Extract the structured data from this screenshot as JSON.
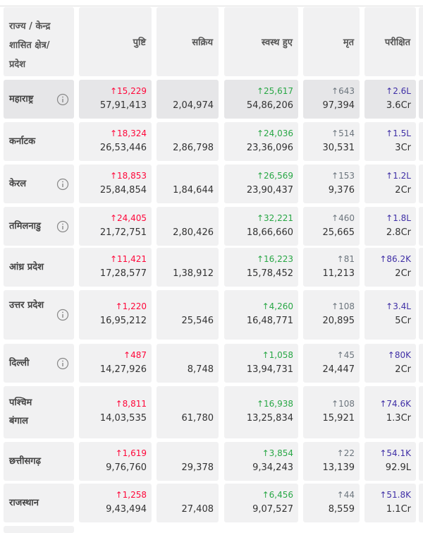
{
  "table": {
    "header": [
      "राज्य / केन्द्र शासित क्षेत्र/ प्रदेश",
      "पुष्टि",
      "सक्रिय",
      "स्वस्थ हुए",
      "मृत",
      "परीक्षित"
    ],
    "rows": [
      {
        "state": "महाराष्ट्र",
        "info": true,
        "confirmed_delta": "↑15,229",
        "confirmed": "57,91,413",
        "active": "2,04,974",
        "recovered_delta": "↑25,617",
        "recovered": "54,86,206",
        "deceased_delta": "↑643",
        "deceased": "97,394",
        "tested_delta": "↑2.6L",
        "tested": "3.6Cr"
      },
      {
        "state": "कर्नाटक",
        "info": false,
        "confirmed_delta": "↑18,324",
        "confirmed": "26,53,446",
        "active": "2,86,798",
        "recovered_delta": "↑24,036",
        "recovered": "23,36,096",
        "deceased_delta": "↑514",
        "deceased": "30,531",
        "tested_delta": "↑1.5L",
        "tested": "3Cr"
      },
      {
        "state": "केरल",
        "info": true,
        "confirmed_delta": "↑18,853",
        "confirmed": "25,84,854",
        "active": "1,84,644",
        "recovered_delta": "↑26,569",
        "recovered": "23,90,437",
        "deceased_delta": "↑153",
        "deceased": "9,376",
        "tested_delta": "↑1.2L",
        "tested": "2Cr"
      },
      {
        "state": "तमिलनाडु",
        "info": true,
        "confirmed_delta": "↑24,405",
        "confirmed": "21,72,751",
        "active": "2,80,426",
        "recovered_delta": "↑32,221",
        "recovered": "18,66,660",
        "deceased_delta": "↑460",
        "deceased": "25,665",
        "tested_delta": "↑1.8L",
        "tested": "2.8Cr"
      },
      {
        "state": "आंध्र प्रदेश",
        "info": false,
        "confirmed_delta": "↑11,421",
        "confirmed": "17,28,577",
        "active": "1,38,912",
        "recovered_delta": "↑16,223",
        "recovered": "15,78,452",
        "deceased_delta": "↑81",
        "deceased": "11,213",
        "tested_delta": "↑86.2K",
        "tested": "2Cr"
      },
      {
        "state": "उत्तर प्रदेश",
        "info": true,
        "confirmed_delta": "↑1,220",
        "confirmed": "16,95,212",
        "active": "25,546",
        "recovered_delta": "↑4,260",
        "recovered": "16,48,771",
        "deceased_delta": "↑108",
        "deceased": "20,895",
        "tested_delta": "↑3.4L",
        "tested": "5Cr"
      },
      {
        "state": "दिल्ली",
        "info": true,
        "confirmed_delta": "↑487",
        "confirmed": "14,27,926",
        "active": "8,748",
        "recovered_delta": "↑1,058",
        "recovered": "13,94,731",
        "deceased_delta": "↑45",
        "deceased": "24,447",
        "tested_delta": "↑80K",
        "tested": "2Cr"
      },
      {
        "state": "पश्चिम बंगाल",
        "info": false,
        "confirmed_delta": "↑8,811",
        "confirmed": "14,03,535",
        "active": "61,780",
        "recovered_delta": "↑16,938",
        "recovered": "13,25,834",
        "deceased_delta": "↑108",
        "deceased": "15,921",
        "tested_delta": "↑74.6K",
        "tested": "1.3Cr"
      },
      {
        "state": "छत्तीसगढ़",
        "info": false,
        "confirmed_delta": "↑1,619",
        "confirmed": "9,76,760",
        "active": "29,378",
        "recovered_delta": "↑3,854",
        "recovered": "9,34,243",
        "deceased_delta": "↑22",
        "deceased": "13,139",
        "tested_delta": "↑54.1K",
        "tested": "92.9L"
      },
      {
        "state": "राजस्थान",
        "info": false,
        "confirmed_delta": "↑1,258",
        "confirmed": "9,43,494",
        "active": "27,408",
        "recovered_delta": "↑6,456",
        "recovered": "9,07,527",
        "deceased_delta": "↑44",
        "deceased": "8,559",
        "tested_delta": "↑51.8K",
        "tested": "1.1Cr"
      }
    ]
  }
}
